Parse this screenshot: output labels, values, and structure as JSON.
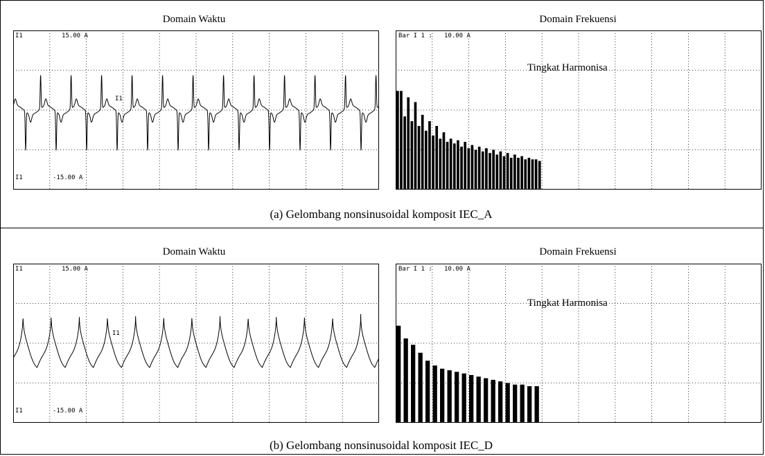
{
  "panels": [
    {
      "caption": "(a) Gelombang nonsinusoidal komposit IEC_A",
      "time": {
        "title": "Domain Waktu",
        "top_label": "I1",
        "top_value": "15.00 A",
        "bottom_label": "I1",
        "bottom_value": "-15.00 A",
        "trace_label": "I1"
      },
      "freq": {
        "title": "Domain Frekuensi",
        "top_label": "Bar I 1 :",
        "top_value": "10.00 A",
        "annotation": "Tingkat Harmonisa"
      }
    },
    {
      "caption": "(b) Gelombang nonsinusoidal komposit IEC_D",
      "time": {
        "title": "Domain Waktu",
        "top_label": "I1",
        "top_value": "15.00 A",
        "bottom_label": "I1",
        "bottom_value": "-15.00 A",
        "trace_label": "I1"
      },
      "freq": {
        "title": "Domain Frekuensi",
        "top_label": "Bar I 1 :",
        "top_value": "10.00 A",
        "annotation": "Tingkat Harmonisa"
      }
    }
  ],
  "chart_data": [
    {
      "type": "line",
      "title": "Domain Waktu",
      "ylim": [
        -15,
        15
      ],
      "unit": "A",
      "series": [
        {
          "name": "I1",
          "waveform": "spiky",
          "cycles": 12
        }
      ],
      "grid": true
    },
    {
      "type": "bar",
      "title": "Domain Frekuensi",
      "ylim": [
        0,
        10
      ],
      "unit": "A",
      "annotation": "Tingkat Harmonisa",
      "values": [
        6.2,
        6.2,
        4.6,
        5.8,
        4.3,
        5.5,
        4.0,
        4.7,
        3.7,
        4.3,
        3.4,
        4.0,
        3.2,
        3.6,
        3.0,
        3.2,
        2.9,
        3.1,
        2.7,
        3.0,
        2.6,
        2.8,
        2.5,
        2.7,
        2.4,
        2.6,
        2.3,
        2.5,
        2.2,
        2.4,
        2.1,
        2.3,
        2.0,
        2.2,
        2.0,
        2.1,
        1.9,
        2.0,
        1.9,
        1.9,
        1.8
      ],
      "grid": true
    },
    {
      "type": "line",
      "title": "Domain Waktu",
      "ylim": [
        -15,
        15
      ],
      "unit": "A",
      "series": [
        {
          "name": "I1",
          "waveform": "cusped",
          "cycles": 13
        }
      ],
      "grid": true
    },
    {
      "type": "bar",
      "title": "Domain Frekuensi",
      "ylim": [
        0,
        10
      ],
      "unit": "A",
      "annotation": "Tingkat Harmonisa",
      "values": [
        6.1,
        5.3,
        4.9,
        4.4,
        3.9,
        3.6,
        3.4,
        3.3,
        3.2,
        3.1,
        3.0,
        2.9,
        2.8,
        2.7,
        2.6,
        2.5,
        2.4,
        2.4,
        2.3,
        2.3
      ],
      "grid": true
    }
  ]
}
